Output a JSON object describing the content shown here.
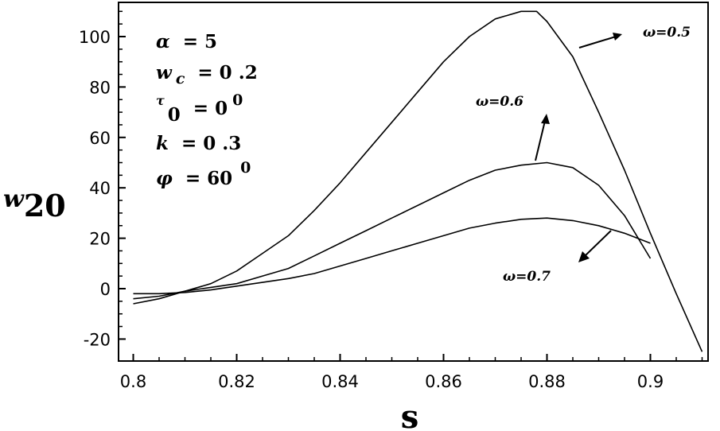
{
  "chart_data": {
    "type": "line",
    "xlabel": "s",
    "ylabel": "w",
    "ylabel_sub": "20",
    "xlim": [
      0.8,
      0.91
    ],
    "ylim": [
      -25,
      113
    ],
    "x_ticks": [
      0.8,
      0.82,
      0.84,
      0.86,
      0.88,
      0.9
    ],
    "x_tick_labels": [
      "0.8",
      "0.82",
      "0.84",
      "0.86",
      "0.88",
      "0.9"
    ],
    "y_ticks": [
      -20,
      0,
      20,
      40,
      60,
      80,
      100
    ],
    "y_tick_labels": [
      "-20",
      "0",
      "20",
      "40",
      "60",
      "80",
      "100"
    ],
    "grid": false,
    "parameters": [
      {
        "sym": "α",
        "sub": "",
        "eq": "= 5",
        "sup": ""
      },
      {
        "sym": "w",
        "sub": "c",
        "eq": "= 0 .2",
        "sup": ""
      },
      {
        "sym": "τ",
        "sub": "0",
        "eq": "= 0",
        "sup": "0"
      },
      {
        "sym": "k",
        "sub": "",
        "eq": "= 0 .3",
        "sup": ""
      },
      {
        "sym": "φ",
        "sub": "",
        "eq": "= 60",
        "sup": "0"
      }
    ],
    "series": [
      {
        "name": "ω=0.5",
        "x": [
          0.8,
          0.805,
          0.81,
          0.815,
          0.82,
          0.825,
          0.83,
          0.835,
          0.84,
          0.845,
          0.85,
          0.855,
          0.86,
          0.865,
          0.87,
          0.875,
          0.878,
          0.88,
          0.885,
          0.89,
          0.895,
          0.9,
          0.905,
          0.91
        ],
        "y": [
          -6,
          -4,
          -1,
          2,
          7,
          14,
          21,
          31,
          42,
          54,
          66,
          78,
          90,
          100,
          107,
          110,
          110,
          106,
          92,
          70,
          47,
          22,
          -2,
          -25
        ]
      },
      {
        "name": "ω=0.6",
        "x": [
          0.8,
          0.805,
          0.81,
          0.815,
          0.82,
          0.825,
          0.83,
          0.835,
          0.84,
          0.845,
          0.85,
          0.855,
          0.86,
          0.865,
          0.87,
          0.875,
          0.88,
          0.885,
          0.89,
          0.895,
          0.9
        ],
        "y": [
          -4,
          -3,
          -1,
          0.5,
          2,
          5,
          8,
          13,
          18,
          23,
          28,
          33,
          38,
          43,
          47,
          49,
          50,
          48,
          41,
          29,
          12
        ]
      },
      {
        "name": "ω=0.7",
        "x": [
          0.8,
          0.805,
          0.81,
          0.815,
          0.82,
          0.825,
          0.83,
          0.835,
          0.84,
          0.845,
          0.85,
          0.855,
          0.86,
          0.865,
          0.87,
          0.875,
          0.88,
          0.885,
          0.89,
          0.895,
          0.9
        ],
        "y": [
          -2,
          -2,
          -1.5,
          -0.5,
          1,
          2.5,
          4,
          6,
          9,
          12,
          15,
          18,
          21,
          24,
          26,
          27.5,
          28,
          27,
          25,
          22,
          18
        ]
      }
    ]
  }
}
